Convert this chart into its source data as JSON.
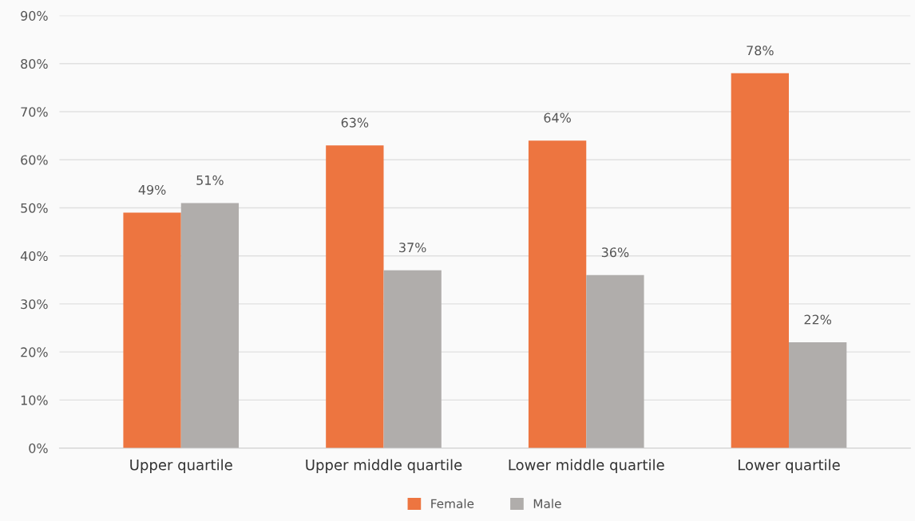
{
  "chart_data": {
    "type": "bar",
    "categories": [
      "Upper quartile",
      "Upper middle quartile",
      "Lower middle quartile",
      "Lower quartile"
    ],
    "series": [
      {
        "name": "Female",
        "color": "#ed7540",
        "values": [
          49,
          63,
          64,
          78
        ],
        "value_labels": [
          "49%",
          "63%",
          "64%",
          "78%"
        ]
      },
      {
        "name": "Male",
        "color": "#b0adab",
        "values": [
          51,
          37,
          36,
          22
        ],
        "value_labels": [
          "51%",
          "37%",
          "36%",
          "22%"
        ]
      }
    ],
    "ylim": [
      0,
      90
    ],
    "yticks": [
      {
        "value": 0,
        "label": "0%"
      },
      {
        "value": 10,
        "label": "10%"
      },
      {
        "value": 20,
        "label": "20%"
      },
      {
        "value": 30,
        "label": "30%"
      },
      {
        "value": 40,
        "label": "40%"
      },
      {
        "value": 50,
        "label": "50%"
      },
      {
        "value": 60,
        "label": "60%"
      },
      {
        "value": 70,
        "label": "70%"
      },
      {
        "value": 80,
        "label": "80%"
      },
      {
        "value": 90,
        "label": "90%"
      }
    ],
    "grid": "y",
    "legend": "bottom"
  }
}
